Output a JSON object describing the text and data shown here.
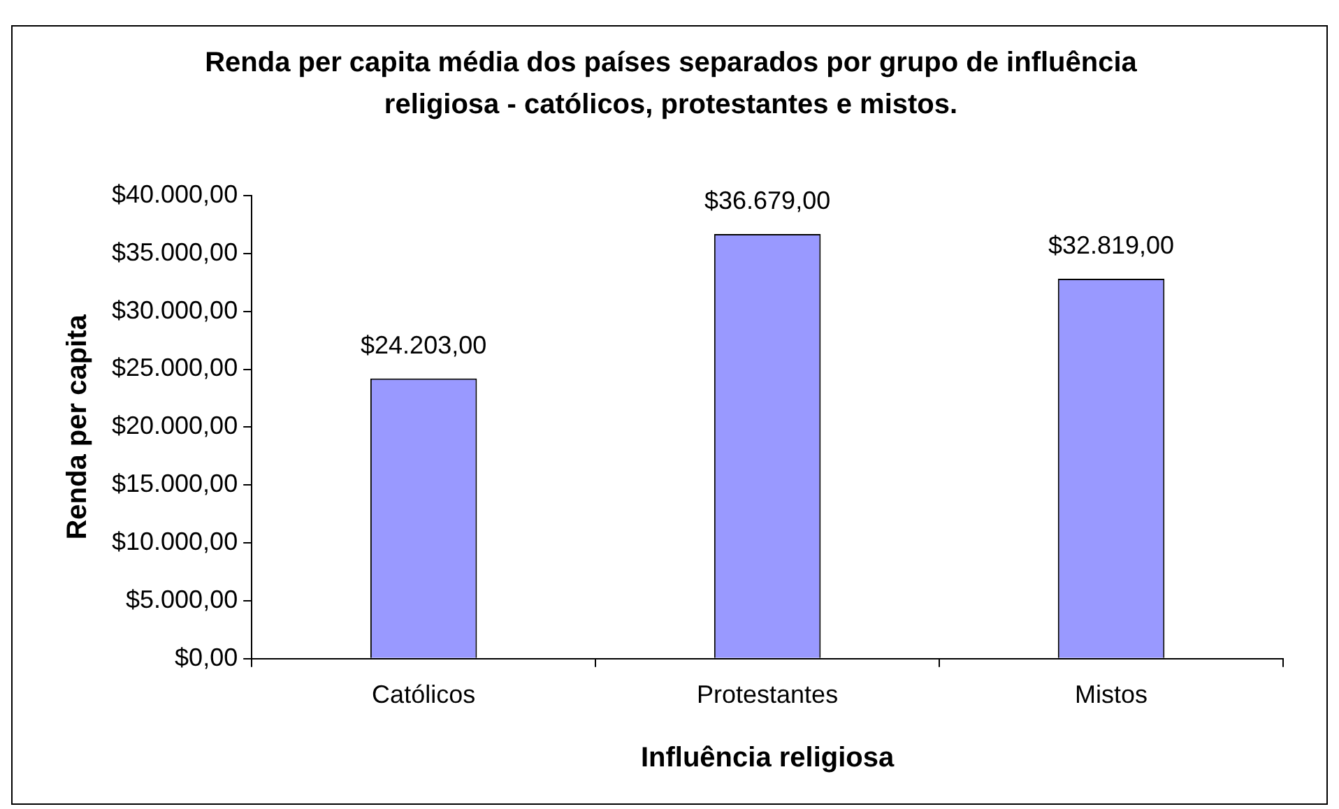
{
  "chart_data": {
    "type": "bar",
    "title": "Renda per capita média dos países separados por grupo de influência religiosa - católicos, protestantes e mistos.",
    "xlabel": "Influência religiosa",
    "ylabel": "Renda per capita",
    "categories": [
      "Católicos",
      "Protestantes",
      "Mistos"
    ],
    "values": [
      24203,
      36679,
      32819
    ],
    "color": "#9999ff",
    "value_labels": [
      "$24.203,00",
      "$36.679,00",
      "$32.819,00"
    ],
    "ylim": [
      0,
      40000
    ],
    "yticks": [
      {
        "value": 0,
        "label": "$0,00"
      },
      {
        "value": 5000,
        "label": "$5.000,00"
      },
      {
        "value": 10000,
        "label": "$10.000,00"
      },
      {
        "value": 15000,
        "label": "$15.000,00"
      },
      {
        "value": 20000,
        "label": "$20.000,00"
      },
      {
        "value": 25000,
        "label": "$25.000,00"
      },
      {
        "value": 30000,
        "label": "$30.000,00"
      },
      {
        "value": 35000,
        "label": "$35.000,00"
      },
      {
        "value": 40000,
        "label": "$40.000,00"
      }
    ],
    "grid": false,
    "legend": false
  }
}
